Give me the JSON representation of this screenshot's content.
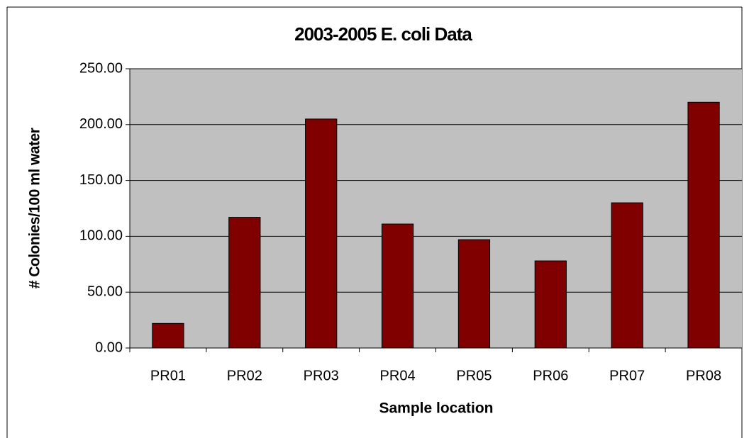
{
  "chart_data": {
    "type": "bar",
    "title": "2003-2005 E. coli Data",
    "x_label": "Sample location",
    "y_label": "# Colonies/100 ml water",
    "categories": [
      "PR01",
      "PR02",
      "PR03",
      "PR04",
      "PR05",
      "PR06",
      "PR07",
      "PR08"
    ],
    "values": [
      22,
      117,
      205,
      111,
      97,
      78,
      130,
      220
    ],
    "color": "#800000",
    "ylim": [
      0,
      250
    ],
    "yticks": [
      {
        "value": 0,
        "label": "0.00"
      },
      {
        "value": 50,
        "label": "50.00"
      },
      {
        "value": 100,
        "label": "100.00"
      },
      {
        "value": 150,
        "label": "150.00"
      },
      {
        "value": 200,
        "label": "200.00"
      },
      {
        "value": 250,
        "label": "250.00"
      }
    ],
    "grid": true
  }
}
